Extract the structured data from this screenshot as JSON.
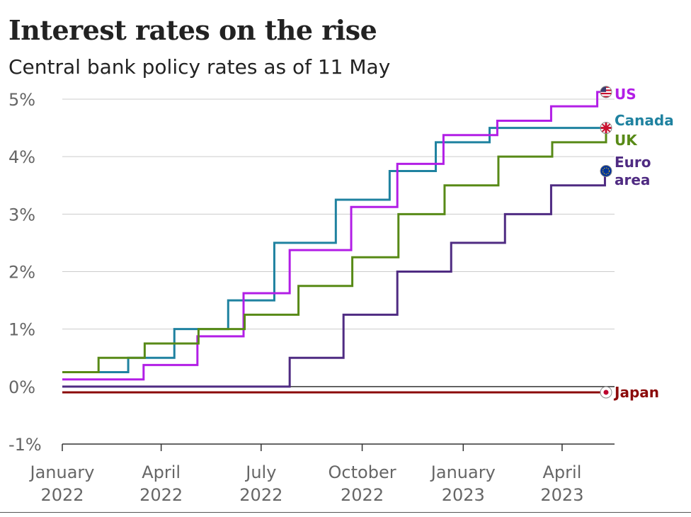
{
  "header": {
    "title": "Interest rates on the rise",
    "subtitle": "Central bank policy rates as of 11 May"
  },
  "chart_data": {
    "type": "line",
    "title": "Interest rates on the rise",
    "subtitle": "Central bank policy rates as of 11 May",
    "xlabel": "",
    "ylabel": "",
    "ylim": [
      -1,
      5
    ],
    "xlim": [
      "2022-01-01",
      "2023-05-11"
    ],
    "grid": true,
    "legend": "direct labels at right end of lines",
    "step": true,
    "yticks": [
      {
        "value": 5,
        "label": "5%"
      },
      {
        "value": 4,
        "label": "4%"
      },
      {
        "value": 3,
        "label": "3%"
      },
      {
        "value": 2,
        "label": "2%"
      },
      {
        "value": 1,
        "label": "1%"
      },
      {
        "value": 0,
        "label": "0%"
      },
      {
        "value": -1,
        "label": "-1%"
      }
    ],
    "xticks": [
      {
        "date": "2022-01-01",
        "lines": [
          "January",
          "2022"
        ]
      },
      {
        "date": "2022-04-01",
        "lines": [
          "April",
          "2022"
        ]
      },
      {
        "date": "2022-07-01",
        "lines": [
          "July",
          "2022"
        ]
      },
      {
        "date": "2022-10-01",
        "lines": [
          "October",
          "2022"
        ]
      },
      {
        "date": "2023-01-01",
        "lines": [
          "January",
          "2023"
        ]
      },
      {
        "date": "2023-04-01",
        "lines": [
          "April",
          "2023"
        ]
      }
    ],
    "series": [
      {
        "name": "Canada",
        "label_lines": [
          "Canada"
        ],
        "color": "#1f82a0",
        "marker": "none",
        "points": [
          [
            "2022-01-01",
            0.25
          ],
          [
            "2022-03-02",
            0.5
          ],
          [
            "2022-04-13",
            1.0
          ],
          [
            "2022-06-01",
            1.5
          ],
          [
            "2022-07-13",
            2.5
          ],
          [
            "2022-09-07",
            3.25
          ],
          [
            "2022-10-26",
            3.75
          ],
          [
            "2022-12-07",
            4.25
          ],
          [
            "2023-01-25",
            4.5
          ],
          [
            "2023-05-11",
            4.5
          ]
        ]
      },
      {
        "name": "US",
        "label_lines": [
          "US"
        ],
        "color": "#b21ee6",
        "marker": "us-flag-icon",
        "points": [
          [
            "2022-01-01",
            0.125
          ],
          [
            "2022-03-16",
            0.375
          ],
          [
            "2022-05-04",
            0.875
          ],
          [
            "2022-06-15",
            1.625
          ],
          [
            "2022-07-27",
            2.375
          ],
          [
            "2022-09-21",
            3.125
          ],
          [
            "2022-11-02",
            3.875
          ],
          [
            "2022-12-14",
            4.375
          ],
          [
            "2023-02-01",
            4.625
          ],
          [
            "2023-03-22",
            4.875
          ],
          [
            "2023-05-03",
            5.125
          ],
          [
            "2023-05-11",
            5.125
          ]
        ]
      },
      {
        "name": "UK",
        "label_lines": [
          "UK"
        ],
        "color": "#588a17",
        "marker": "uk-flag-icon",
        "points": [
          [
            "2022-01-01",
            0.25
          ],
          [
            "2022-02-03",
            0.5
          ],
          [
            "2022-03-17",
            0.75
          ],
          [
            "2022-05-05",
            1.0
          ],
          [
            "2022-06-16",
            1.25
          ],
          [
            "2022-08-04",
            1.75
          ],
          [
            "2022-09-22",
            2.25
          ],
          [
            "2022-11-03",
            3.0
          ],
          [
            "2022-12-15",
            3.5
          ],
          [
            "2023-02-02",
            4.0
          ],
          [
            "2023-03-23",
            4.25
          ],
          [
            "2023-05-11",
            4.5
          ]
        ]
      },
      {
        "name": "Euro area",
        "label_lines": [
          "Euro",
          "area"
        ],
        "color": "#4f2b82",
        "marker": "eu-flag-icon",
        "points": [
          [
            "2022-01-01",
            0.0
          ],
          [
            "2022-07-27",
            0.5
          ],
          [
            "2022-09-14",
            1.25
          ],
          [
            "2022-11-02",
            2.0
          ],
          [
            "2022-12-21",
            2.5
          ],
          [
            "2023-02-08",
            3.0
          ],
          [
            "2023-03-22",
            3.5
          ],
          [
            "2023-05-10",
            3.75
          ],
          [
            "2023-05-11",
            3.75
          ]
        ]
      },
      {
        "name": "Japan",
        "label_lines": [
          "Japan"
        ],
        "color": "#8b0a0a",
        "marker": "japan-flag-icon",
        "points": [
          [
            "2022-01-01",
            -0.1
          ],
          [
            "2023-05-11",
            -0.1
          ]
        ]
      }
    ]
  }
}
